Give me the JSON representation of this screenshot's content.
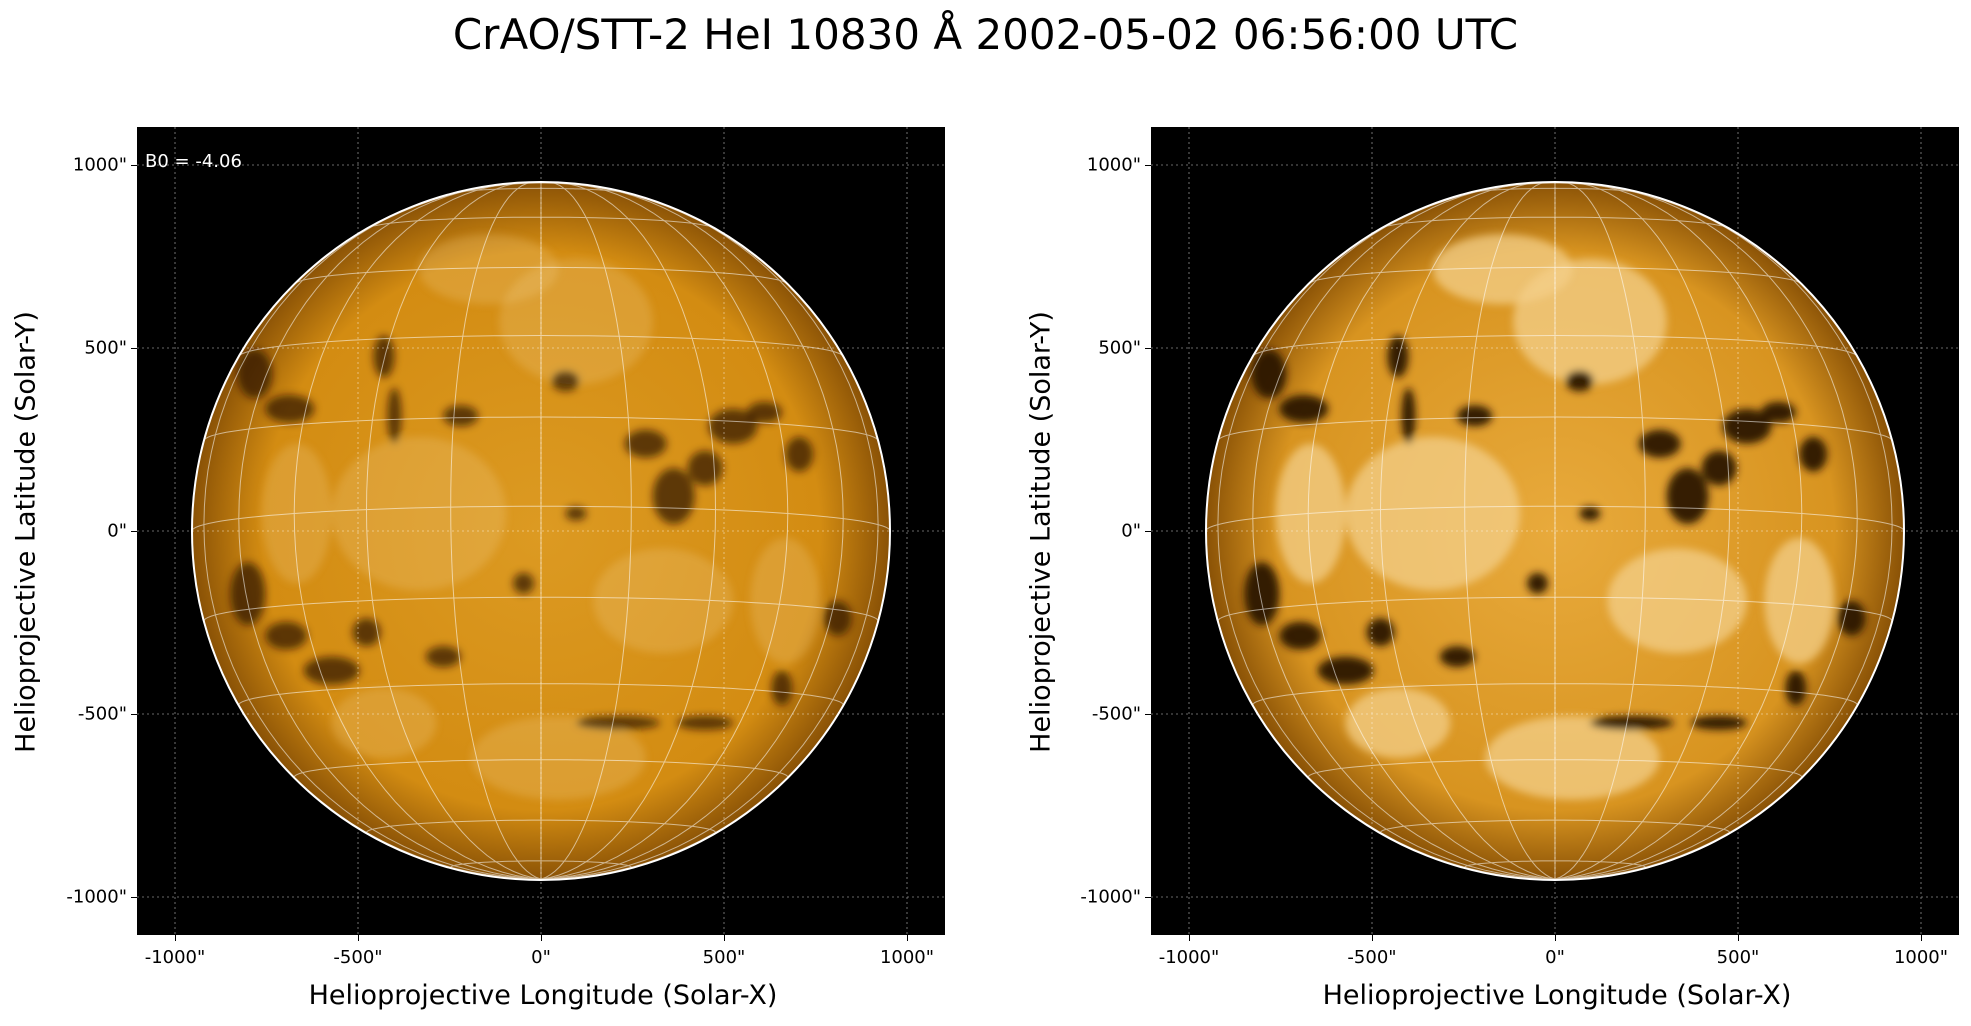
{
  "title": "CrAO/STT-2 HeI 10830 Å 2002-05-02 06:56:00 UTC",
  "panels": [
    {
      "id": "left",
      "annotation": "B0 = -4.06",
      "xlabel": "Helioprojective Longitude (Solar-X)",
      "ylabel": "Helioprojective Latitude (Solar-Y)",
      "xticks": [
        "-1000\"",
        "-500\"",
        "0\"",
        "500\"",
        "1000\""
      ],
      "yticks": [
        "1000\"",
        "500\"",
        "0\"",
        "-500\"",
        "-1000\""
      ],
      "contrast": "low"
    },
    {
      "id": "right",
      "annotation": "",
      "xlabel": "Helioprojective Longitude (Solar-X)",
      "ylabel": "Helioprojective Latitude (Solar-Y)",
      "xticks": [
        "-1000\"",
        "-500\"",
        "0\"",
        "500\"",
        "1000\""
      ],
      "yticks": [
        "1000\"",
        "500\"",
        "0\"",
        "-500\"",
        "-1000\""
      ],
      "contrast": "high"
    }
  ],
  "colors": {
    "disk_base": "#d08a10",
    "disk_bright": "#f3cf8a",
    "disk_dark": "#2a1400",
    "background": "#000000",
    "grid": "#ffffff"
  }
}
